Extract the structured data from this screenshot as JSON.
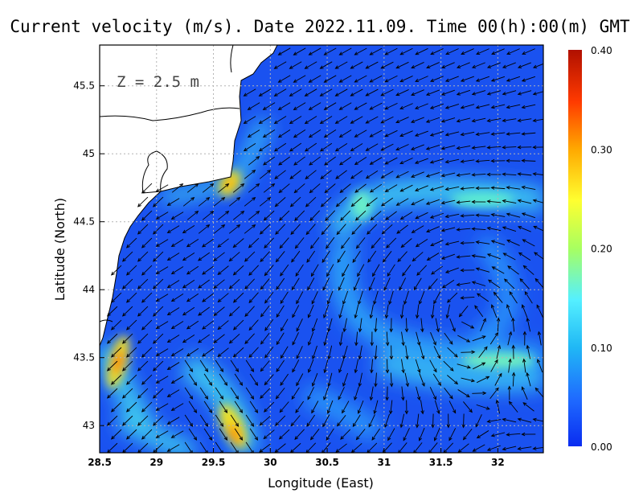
{
  "chart_data": {
    "type": "heatmap",
    "title": "Current velocity (m/s). Date 2022.11.09. Time 00(h):00(m) GMT",
    "xlabel": "Longitude (East)",
    "ylabel": "Latitude (North)",
    "annotation": "Z = 2.5 m",
    "xlim": [
      28.5,
      32.4
    ],
    "ylim": [
      42.8,
      45.8
    ],
    "x_ticks": [
      "28.5",
      "29",
      "29.5",
      "30",
      "30.5",
      "31",
      "31.5",
      "32"
    ],
    "y_ticks": [
      "43",
      "43.5",
      "44",
      "44.5",
      "45",
      "45.5"
    ],
    "grid": true,
    "colorbar": {
      "min": 0.0,
      "max": 0.4,
      "ticks": [
        "0.00",
        "0.10",
        "0.20",
        "0.30",
        "0.40"
      ],
      "colors": [
        "#0a2cf0",
        "#1f6bff",
        "#20b8f5",
        "#55f0ff",
        "#a8ff60",
        "#ffff30",
        "#ffa800",
        "#ff3a00",
        "#b01000"
      ]
    },
    "features": [
      {
        "name": "coastal jet near 29.6E 44.8N",
        "lon": 29.6,
        "lat": 44.75,
        "speed": 0.28
      },
      {
        "name": "coastal jet near 28.65E 43.45N",
        "lon": 28.65,
        "lat": 43.45,
        "speed": 0.38
      },
      {
        "name": "southern jet near 29.65E 43.0N",
        "lon": 29.65,
        "lat": 43.0,
        "speed": 0.32
      },
      {
        "name": "anticyclonic eddy center",
        "lon": 31.5,
        "lat": 44.1,
        "speed": 0.05
      },
      {
        "name": "eastern current band",
        "lon": 31.8,
        "lat": 43.5,
        "speed": 0.14
      }
    ]
  }
}
